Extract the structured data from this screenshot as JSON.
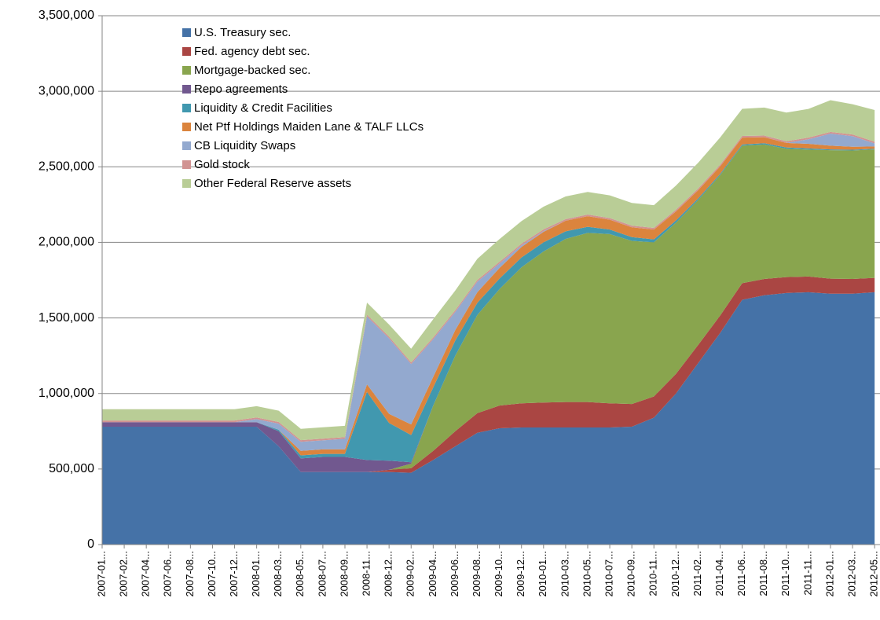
{
  "chart_data": {
    "type": "stacked-area",
    "categories": [
      "2007-01...",
      "2007-02...",
      "2007-04...",
      "2007-06...",
      "2007-08...",
      "2007-10...",
      "2007-12...",
      "2008-01...",
      "2008-03...",
      "2008-05...",
      "2008-07...",
      "2008-09...",
      "2008-11...",
      "2008-12...",
      "2009-02...",
      "2009-04...",
      "2009-06...",
      "2009-08...",
      "2009-10...",
      "2009-12...",
      "2010-01...",
      "2010-03...",
      "2010-05...",
      "2010-07...",
      "2010-09...",
      "2010-11...",
      "2010-12...",
      "2011-02...",
      "2011-04...",
      "2011-06...",
      "2011-08...",
      "2011-10...",
      "2011-11...",
      "2012-01...",
      "2012-03...",
      "2012-05..."
    ],
    "series": [
      {
        "name": "U.S. Treasury sec.",
        "color": "#4572a7",
        "values": [
          780000,
          780000,
          780000,
          780000,
          780000,
          780000,
          780000,
          780000,
          650000,
          480000,
          480000,
          480000,
          480000,
          480000,
          475000,
          560000,
          650000,
          740000,
          770000,
          775000,
          775000,
          775000,
          775000,
          775000,
          780000,
          840000,
          1000000,
          1200000,
          1400000,
          1620000,
          1650000,
          1665000,
          1670000,
          1660000,
          1660000,
          1670000
        ]
      },
      {
        "name": "Fed. agency debt sec.",
        "color": "#aa4643",
        "values": [
          0,
          0,
          0,
          0,
          0,
          0,
          0,
          0,
          0,
          0,
          0,
          0,
          0,
          15000,
          30000,
          60000,
          100000,
          130000,
          150000,
          160000,
          165000,
          168000,
          168000,
          160000,
          150000,
          140000,
          130000,
          120000,
          115000,
          110000,
          108000,
          105000,
          104000,
          100000,
          98000,
          95000
        ]
      },
      {
        "name": "Mortgage-backed sec.",
        "color": "#89a54e",
        "values": [
          0,
          0,
          0,
          0,
          0,
          0,
          0,
          0,
          0,
          0,
          0,
          0,
          0,
          0,
          30000,
          300000,
          500000,
          650000,
          770000,
          900000,
          1000000,
          1080000,
          1120000,
          1120000,
          1080000,
          1020000,
          1000000,
          960000,
          930000,
          910000,
          890000,
          850000,
          840000,
          850000,
          850000,
          850000
        ]
      },
      {
        "name": "Repo agreements",
        "color": "#71588f",
        "values": [
          30000,
          30000,
          30000,
          30000,
          30000,
          30000,
          30000,
          30000,
          100000,
          90000,
          100000,
          100000,
          80000,
          60000,
          10000,
          0,
          0,
          0,
          0,
          0,
          0,
          0,
          0,
          0,
          0,
          0,
          0,
          0,
          0,
          0,
          0,
          0,
          0,
          0,
          0,
          0
        ]
      },
      {
        "name": "Liquidity & Credit Facilities",
        "color": "#4198af",
        "values": [
          0,
          0,
          0,
          0,
          0,
          0,
          0,
          0,
          10000,
          20000,
          20000,
          20000,
          450000,
          250000,
          180000,
          120000,
          100000,
          80000,
          70000,
          65000,
          60000,
          50000,
          40000,
          30000,
          25000,
          20000,
          15000,
          10000,
          8000,
          8000,
          8000,
          8000,
          8000,
          5000,
          5000,
          5000
        ]
      },
      {
        "name": "Net Ptf Holdings Maiden Lane & TALF LLCs",
        "color": "#db843d",
        "values": [
          0,
          0,
          0,
          0,
          0,
          0,
          0,
          0,
          0,
          30000,
          30000,
          30000,
          50000,
          60000,
          70000,
          70000,
          70000,
          70000,
          70000,
          70000,
          70000,
          70000,
          70000,
          65000,
          65000,
          65000,
          60000,
          55000,
          50000,
          45000,
          40000,
          30000,
          30000,
          25000,
          20000,
          15000
        ]
      },
      {
        "name": "CB Liquidity Swaps",
        "color": "#93a9cf",
        "values": [
          0,
          0,
          0,
          0,
          0,
          0,
          0,
          20000,
          40000,
          60000,
          60000,
          70000,
          450000,
          500000,
          400000,
          250000,
          120000,
          70000,
          30000,
          10000,
          5000,
          0,
          0,
          0,
          0,
          0,
          0,
          0,
          0,
          0,
          0,
          0,
          30000,
          80000,
          70000,
          20000
        ]
      },
      {
        "name": "Gold stock",
        "color": "#d19392",
        "values": [
          11000,
          11000,
          11000,
          11000,
          11000,
          11000,
          11000,
          11000,
          11000,
          11000,
          11000,
          11000,
          11000,
          11000,
          11000,
          11000,
          11000,
          11000,
          11000,
          11000,
          11000,
          11000,
          11000,
          11000,
          11000,
          11000,
          11000,
          11000,
          11000,
          11000,
          11000,
          11000,
          11000,
          11000,
          11000,
          11000
        ]
      },
      {
        "name": "Other Federal Reserve assets",
        "color": "#b9cd96",
        "values": [
          75000,
          75000,
          75000,
          75000,
          75000,
          75000,
          75000,
          75000,
          75000,
          75000,
          75000,
          75000,
          80000,
          80000,
          90000,
          120000,
          130000,
          140000,
          150000,
          150000,
          150000,
          150000,
          150000,
          150000,
          150000,
          150000,
          160000,
          170000,
          180000,
          180000,
          185000,
          190000,
          190000,
          210000,
          200000,
          210000
        ]
      }
    ],
    "ylim": [
      0,
      3500000
    ],
    "yticks": [
      {
        "value": 0,
        "label": "0"
      },
      {
        "value": 500000,
        "label": "500,000"
      },
      {
        "value": 1000000,
        "label": "1,000,000"
      },
      {
        "value": 1500000,
        "label": "1,500,000"
      },
      {
        "value": 2000000,
        "label": "2,000,000"
      },
      {
        "value": 2500000,
        "label": "2,500,000"
      },
      {
        "value": 3000000,
        "label": "3,000,000"
      },
      {
        "value": 3500000,
        "label": "3,500,000"
      }
    ],
    "grid": true
  }
}
